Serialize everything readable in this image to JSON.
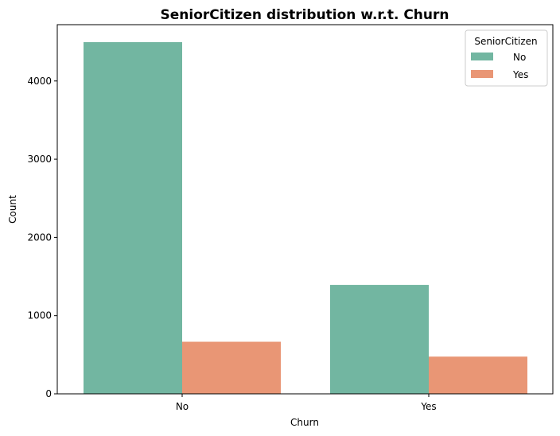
{
  "chart_data": {
    "type": "bar",
    "title": "SeniorCitizen distribution w.r.t. Churn",
    "xlabel": "Churn",
    "ylabel": "Count",
    "categories": [
      "No",
      "Yes"
    ],
    "series": [
      {
        "name": "No",
        "values": [
          4497,
          1393
        ],
        "color": "#72b6a1"
      },
      {
        "name": "Yes",
        "values": [
          666,
          476
        ],
        "color": "#e99675"
      }
    ],
    "ylim": [
      0,
      4720
    ],
    "yticks": [
      0,
      1000,
      2000,
      3000,
      4000
    ],
    "grid": false,
    "legend": {
      "title": "SeniorCitizen",
      "position": "top-right"
    }
  }
}
